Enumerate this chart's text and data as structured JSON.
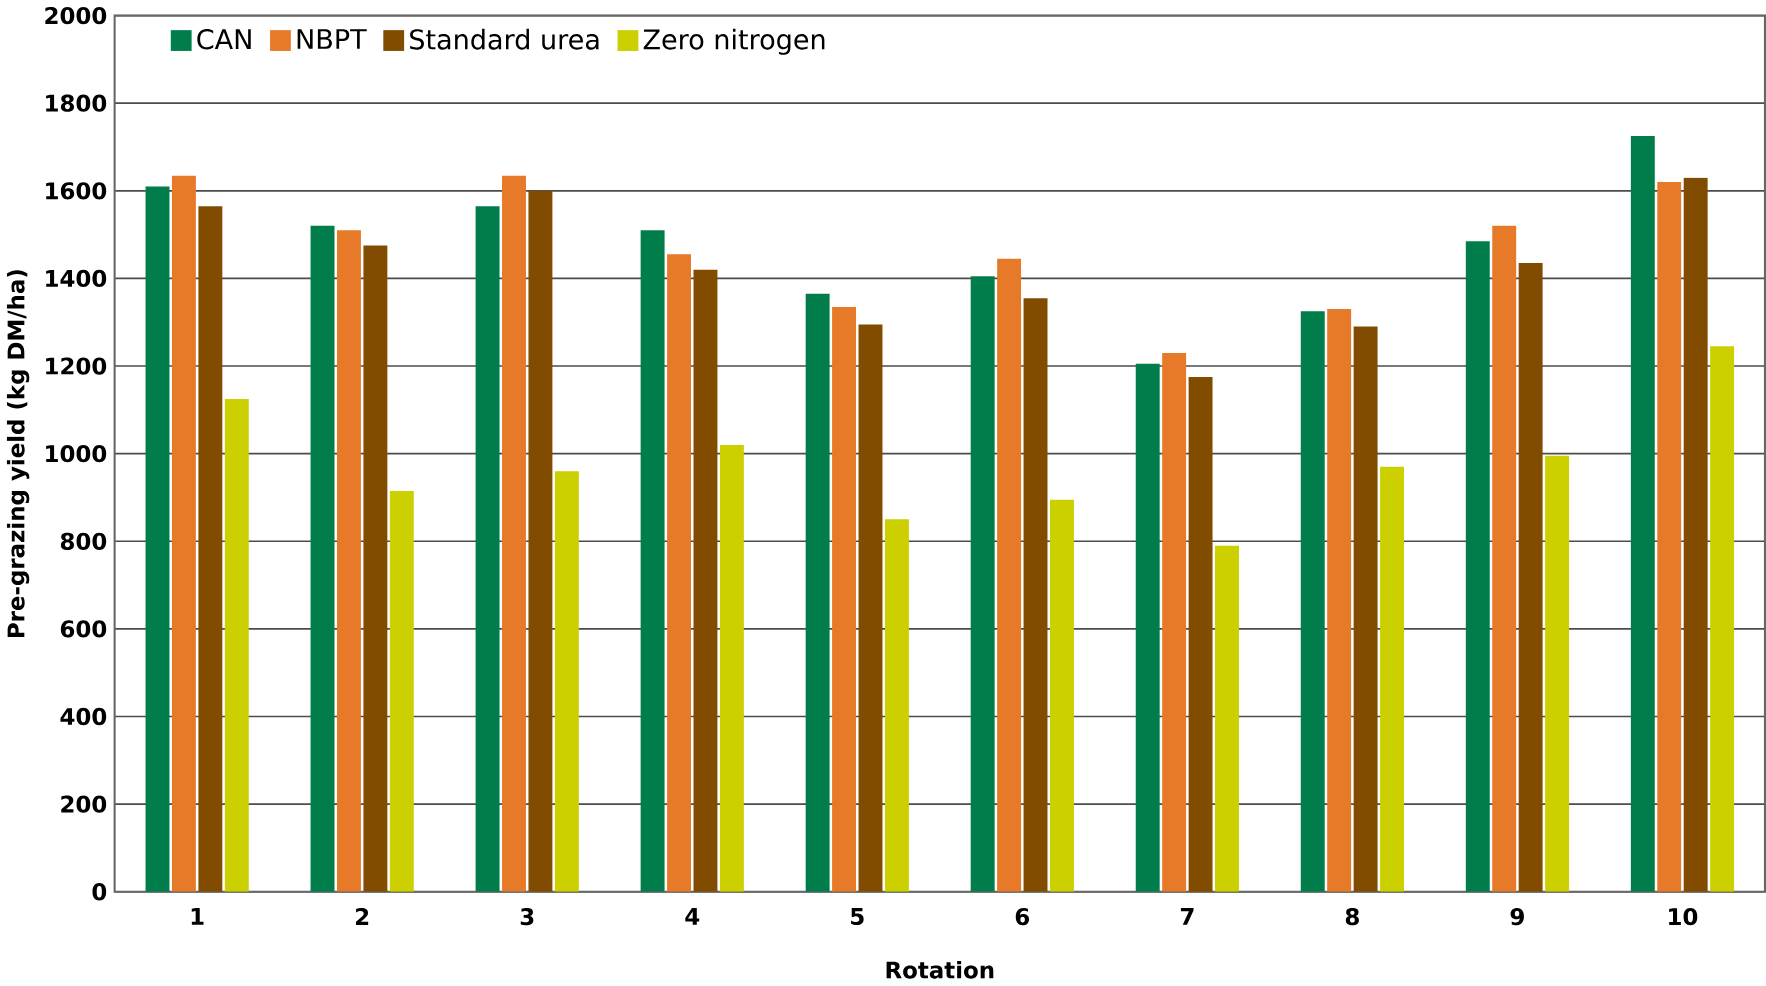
{
  "chart_data": {
    "type": "bar",
    "xlabel": "Rotation",
    "ylabel": "Pre-grazing yield (kg DM/ha)",
    "categories": [
      "1",
      "2",
      "3",
      "4",
      "5",
      "6",
      "7",
      "8",
      "9",
      "10"
    ],
    "series": [
      {
        "name": "CAN",
        "color": "#007d4a",
        "values": [
          1610,
          1520,
          1565,
          1510,
          1365,
          1405,
          1205,
          1325,
          1485,
          1725
        ]
      },
      {
        "name": "NBPT",
        "color": "#e77a28",
        "values": [
          1635,
          1510,
          1635,
          1455,
          1335,
          1445,
          1230,
          1330,
          1520,
          1620
        ]
      },
      {
        "name": "Standard urea",
        "color": "#814c00",
        "values": [
          1565,
          1475,
          1600,
          1420,
          1295,
          1355,
          1175,
          1290,
          1435,
          1630
        ]
      },
      {
        "name": "Zero nitrogen",
        "color": "#cccf00",
        "values": [
          1125,
          915,
          960,
          1020,
          850,
          895,
          790,
          970,
          995,
          1245
        ]
      }
    ],
    "ylim": [
      0,
      2000
    ],
    "yticks": [
      0,
      200,
      400,
      600,
      800,
      1000,
      1200,
      1400,
      1600,
      1800,
      2000
    ],
    "grid": "y",
    "legend": "top left"
  }
}
